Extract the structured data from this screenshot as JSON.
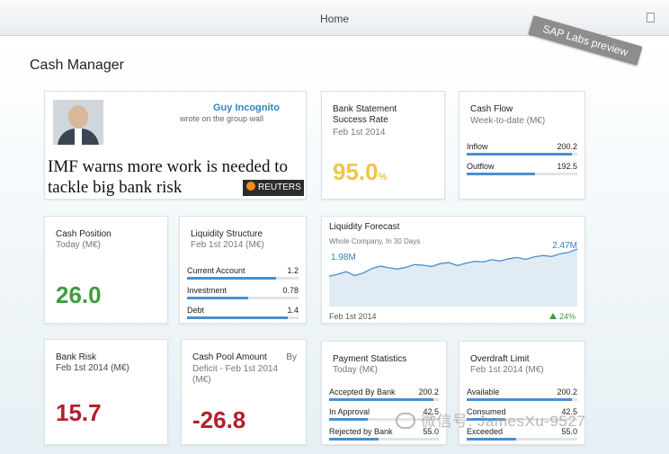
{
  "header": {
    "title": "Home",
    "badge": "SAP Labs preview"
  },
  "page": {
    "title": "Cash Manager"
  },
  "news": {
    "author": "Guy Incognito",
    "action": "wrote on the group wall",
    "headline": "IMF warns more work is needed to tackle big bank risk",
    "source": "REUTERS"
  },
  "bank_statement": {
    "title": "Bank Statement Success Rate",
    "date": "Feb 1st 2014",
    "value": "95.0",
    "unit": "%"
  },
  "cash_flow": {
    "title": "Cash Flow",
    "subtitle": "Week-to-date (M€)",
    "rows": [
      {
        "label": "Inflow",
        "value": "200.2",
        "level": 0.95
      },
      {
        "label": "Outflow",
        "value": "192.5",
        "level": 0.62
      }
    ]
  },
  "cash_position": {
    "title": "Cash Position",
    "subtitle": "Today (M€)",
    "value": "26.0"
  },
  "liquidity_structure": {
    "title": "Liquidity Structure",
    "subtitle": "Feb 1st 2014 (M€)",
    "rows": [
      {
        "label": "Current Account",
        "value": "1.2",
        "level": 0.8
      },
      {
        "label": "Investment",
        "value": "0.78",
        "level": 0.55
      },
      {
        "label": "Debt",
        "value": "1.4",
        "level": 0.9
      }
    ]
  },
  "liquidity_forecast": {
    "title": "Liquidity Forecast",
    "subtitle": "Whole Company, In 30 Days",
    "start_label": "1.98M",
    "end_label": "2.47M",
    "date": "Feb 1st 2014",
    "trend": "24%",
    "line_color": "#4b8fd0"
  },
  "bank_risk": {
    "title": "Bank Risk",
    "subtitle": "Feb 1st 2014 (M€)",
    "value": "15.7"
  },
  "cash_pool": {
    "title": "Cash Pool Amount",
    "by": "By",
    "subtitle": "Deficit - Feb 1st 2014 (M€)",
    "value": "-26.8"
  },
  "payment_statistics": {
    "title": "Payment Statistics",
    "subtitle": "Today (M€)",
    "rows": [
      {
        "label": "Accepted By Bank",
        "value": "200.2",
        "level": 0.95
      },
      {
        "label": "In Approval",
        "value": "42.5",
        "level": 0.35
      },
      {
        "label": "Rejected by Bank",
        "value": "55.0",
        "level": 0.45
      }
    ]
  },
  "overdraft_limit": {
    "title": "Overdraft Limit",
    "subtitle": "Feb 1st 2014 (M€)",
    "rows": [
      {
        "label": "Available",
        "value": "200.2",
        "level": 0.95
      },
      {
        "label": "Consumed",
        "value": "42.5",
        "level": 0.35
      },
      {
        "label": "Exceeded",
        "value": "55.0",
        "level": 0.45
      }
    ]
  },
  "watermark": "微信号: JamesXu-9527",
  "colors": {
    "positive": "#3e9d3e",
    "negative": "#b3202a",
    "highlight": "#f0c54a",
    "bar": "#4b8fd0"
  }
}
